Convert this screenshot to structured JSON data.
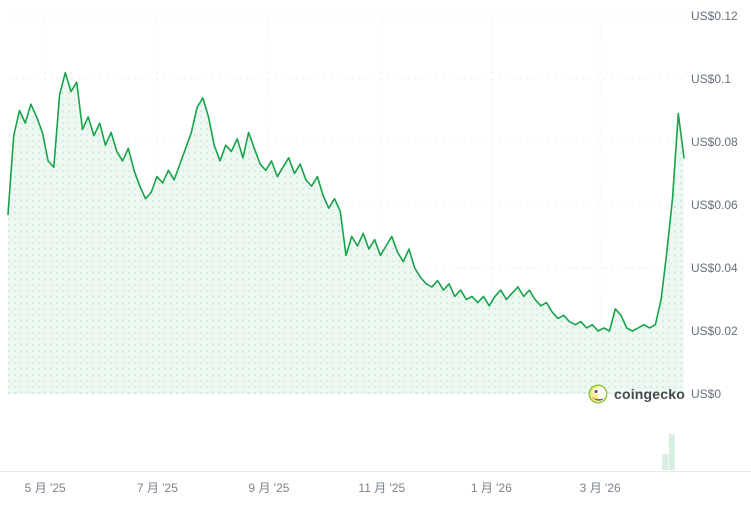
{
  "watermark": {
    "label": "coingecko"
  },
  "colors": {
    "line": "#16a34a",
    "area_base": "#ecf8f1",
    "area_dot": "#cfead9",
    "grid": "#eef0f3",
    "volume_bar": "#d7efe0",
    "axis_text": "#66707e"
  },
  "chart_data": {
    "type": "area",
    "title": "",
    "xlabel": "",
    "ylabel": "",
    "ylim": [
      0,
      0.12
    ],
    "grid": "dashed",
    "legend": "none",
    "y_ticks": [
      {
        "label": "US$0.12",
        "value": 0.12
      },
      {
        "label": "US$0.1",
        "value": 0.1
      },
      {
        "label": "US$0.08",
        "value": 0.08
      },
      {
        "label": "US$0.06",
        "value": 0.06
      },
      {
        "label": "US$0.04",
        "value": 0.04
      },
      {
        "label": "US$0.02",
        "value": 0.02
      },
      {
        "label": "US$0",
        "value": 0.0
      }
    ],
    "x_ticks": [
      {
        "label": "5 月 '25",
        "f": 0.055
      },
      {
        "label": "7 月 '25",
        "f": 0.221
      },
      {
        "label": "9 月 '25",
        "f": 0.386
      },
      {
        "label": "11 月 '25",
        "f": 0.553
      },
      {
        "label": "1 月 '26",
        "f": 0.715
      },
      {
        "label": "3 月 '26",
        "f": 0.876
      }
    ],
    "values": [
      0.057,
      0.082,
      0.09,
      0.086,
      0.092,
      0.088,
      0.083,
      0.074,
      0.072,
      0.095,
      0.102,
      0.096,
      0.099,
      0.084,
      0.088,
      0.082,
      0.086,
      0.079,
      0.083,
      0.077,
      0.074,
      0.078,
      0.071,
      0.066,
      0.062,
      0.064,
      0.069,
      0.067,
      0.071,
      0.068,
      0.073,
      0.078,
      0.083,
      0.091,
      0.094,
      0.088,
      0.079,
      0.074,
      0.079,
      0.077,
      0.081,
      0.075,
      0.083,
      0.078,
      0.073,
      0.071,
      0.074,
      0.069,
      0.072,
      0.075,
      0.07,
      0.073,
      0.068,
      0.066,
      0.069,
      0.063,
      0.059,
      0.062,
      0.058,
      0.044,
      0.05,
      0.047,
      0.051,
      0.046,
      0.049,
      0.044,
      0.047,
      0.05,
      0.045,
      0.042,
      0.046,
      0.04,
      0.037,
      0.035,
      0.034,
      0.036,
      0.033,
      0.035,
      0.031,
      0.033,
      0.03,
      0.031,
      0.029,
      0.031,
      0.028,
      0.031,
      0.033,
      0.03,
      0.032,
      0.034,
      0.031,
      0.033,
      0.03,
      0.028,
      0.029,
      0.026,
      0.024,
      0.025,
      0.023,
      0.022,
      0.023,
      0.021,
      0.022,
      0.02,
      0.021,
      0.02,
      0.027,
      0.025,
      0.021,
      0.02,
      0.021,
      0.022,
      0.021,
      0.022,
      0.03,
      0.045,
      0.062,
      0.089,
      0.075
    ],
    "volume_bars": [
      {
        "f": 0.972,
        "h": 0.45
      },
      {
        "f": 0.982,
        "h": 1.0
      }
    ]
  }
}
